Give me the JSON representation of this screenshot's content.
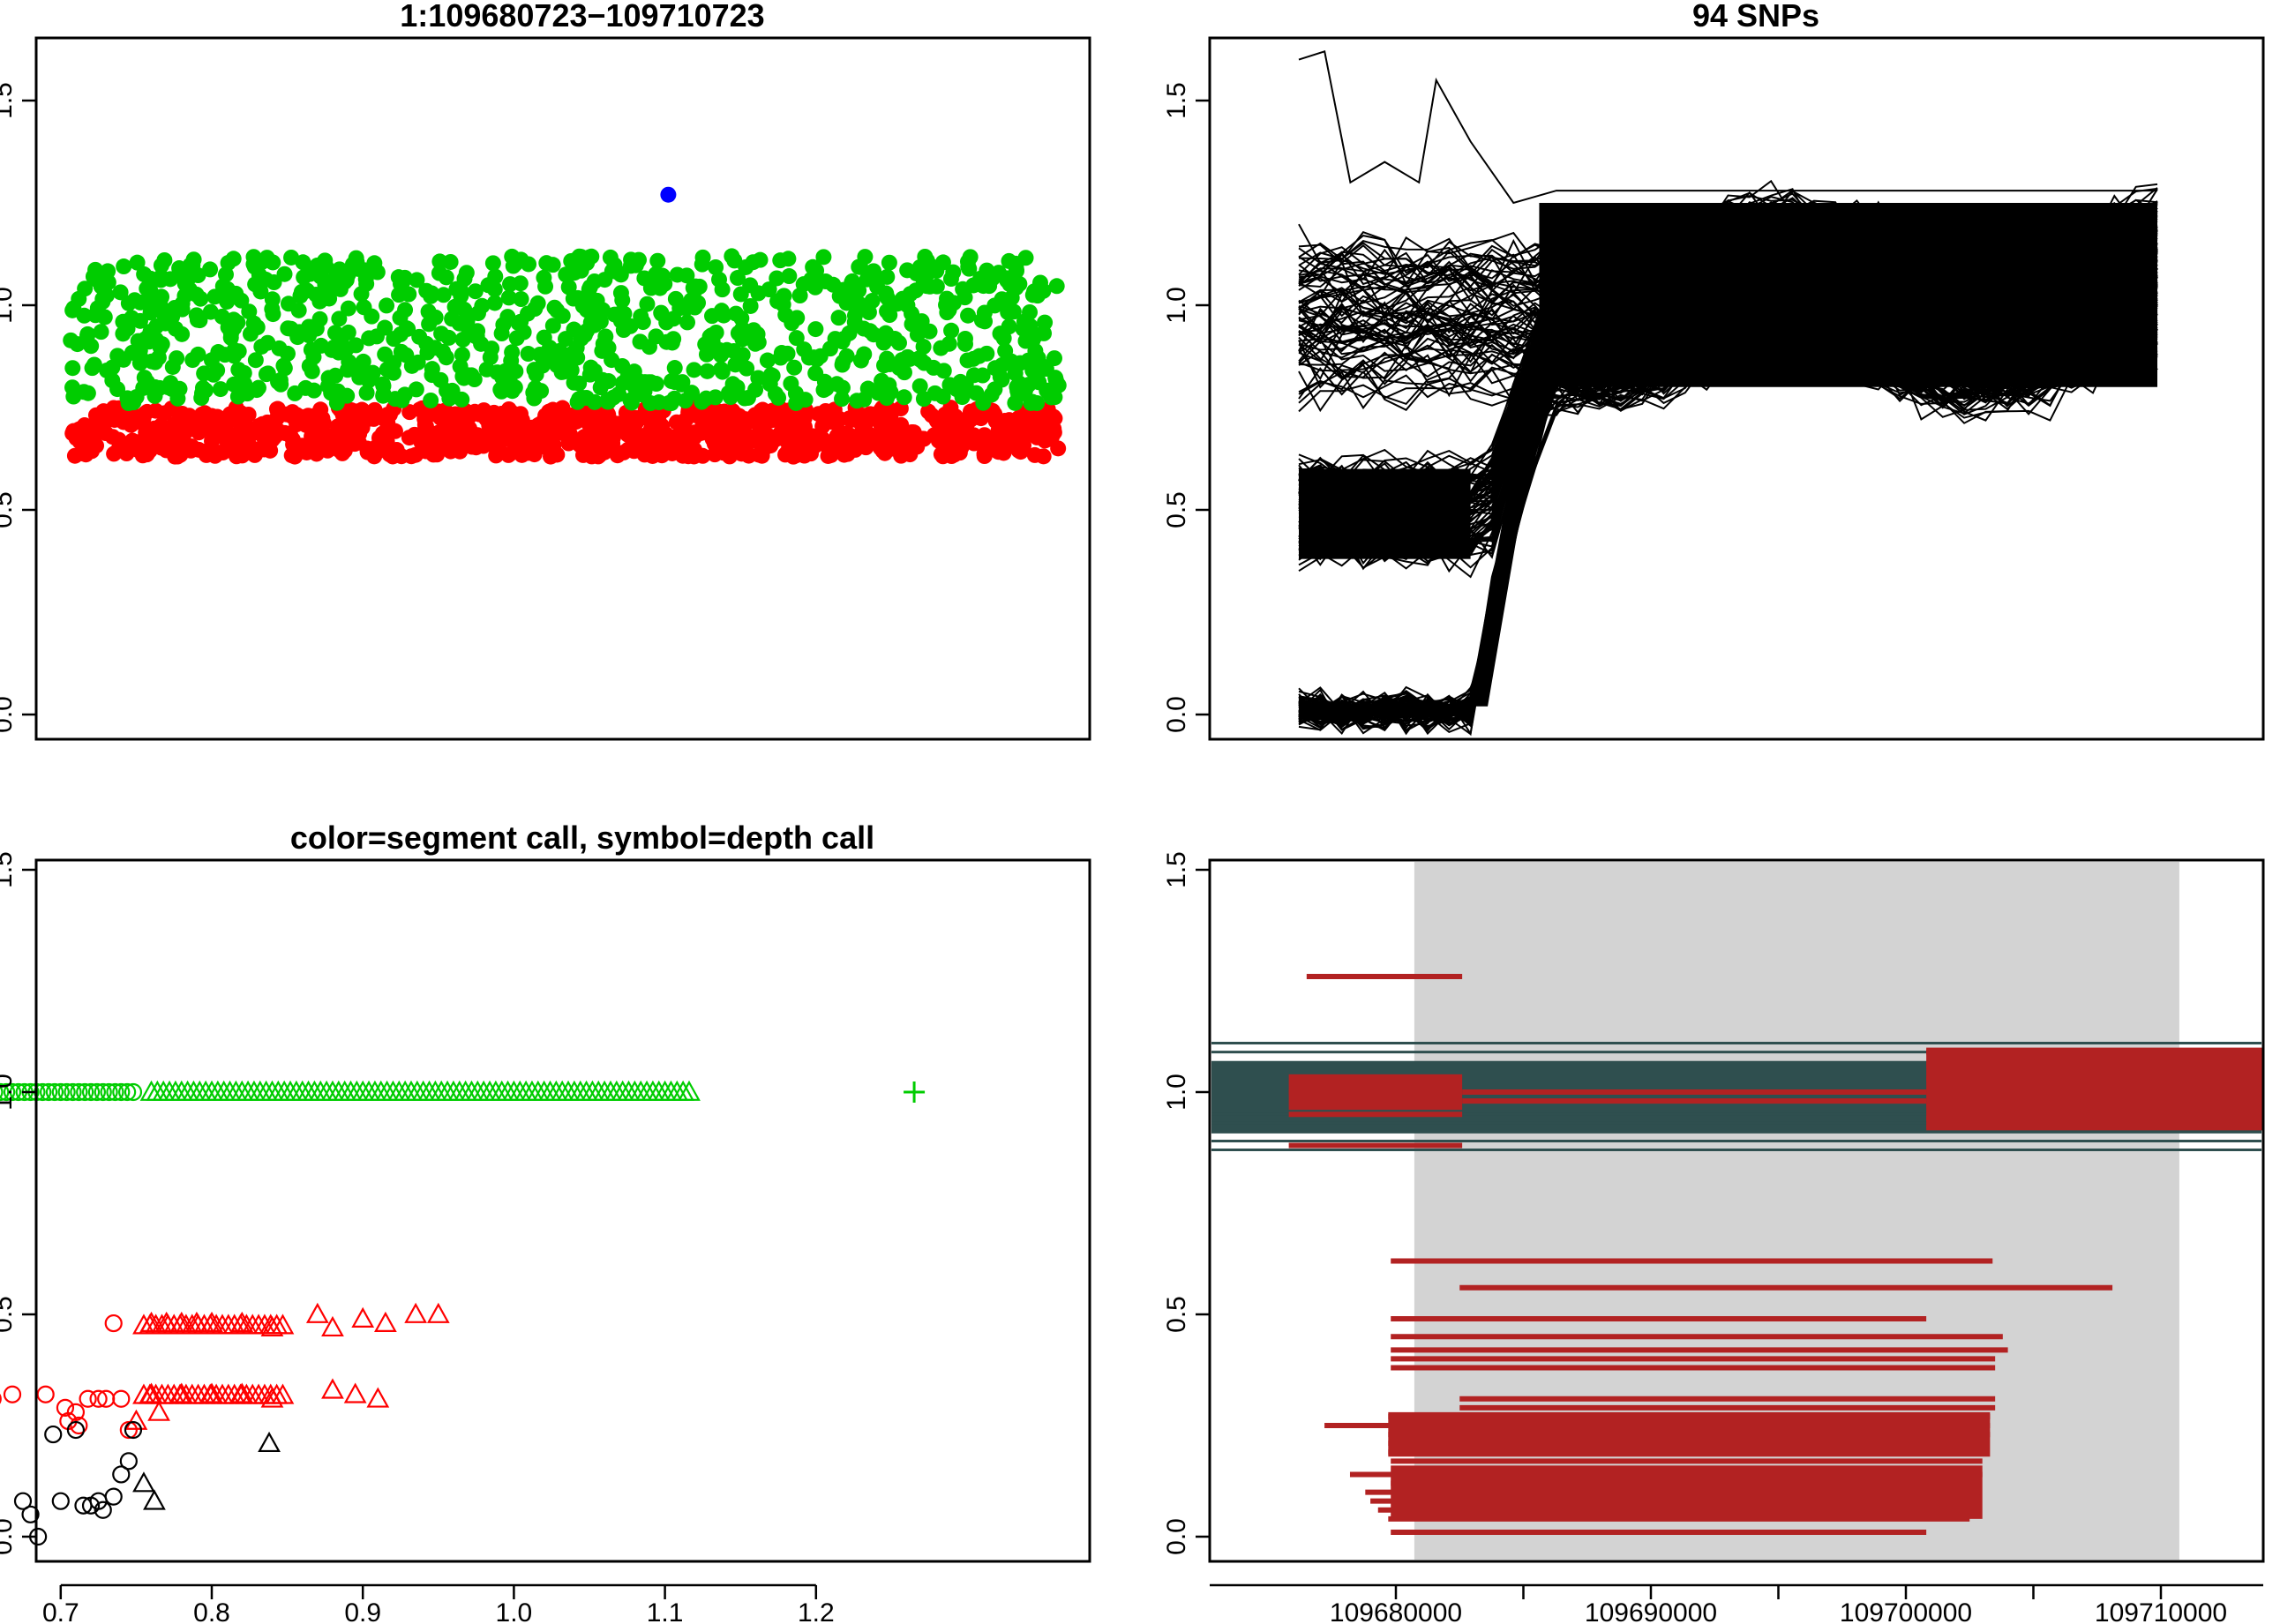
{
  "chart_data": [
    {
      "type": "scatter",
      "title": "1:109680723−109710723",
      "xlabel": "",
      "ylabel": "",
      "ylim": [
        0,
        1.65
      ],
      "ytick_labels": [
        "0.0",
        "0.5",
        "1.0",
        "1.5"
      ],
      "ytick_values": [
        0,
        0.5,
        1.0,
        1.5
      ],
      "x_axis_drawn": false,
      "colors": {
        "upper": "#00cc00",
        "lower": "#ff0000",
        "highlight": "#0000ff"
      },
      "point_count_estimate": 1800,
      "series": [
        {
          "color": "#00cc00",
          "y_range": [
            0.76,
            1.12
          ],
          "note_density": "dense band"
        },
        {
          "color": "#ff0000",
          "y_range": [
            0.63,
            0.75
          ],
          "note_density": "dense band"
        },
        {
          "color": "#0000ff",
          "points": [
            [
              0.6,
              1.27
            ]
          ]
        }
      ]
    },
    {
      "type": "line",
      "title": "94 SNPs",
      "xlabel": "",
      "ylabel": "",
      "ylim": [
        0,
        1.65
      ],
      "ytick_labels": [
        "0.0",
        "0.5",
        "1.0",
        "1.5"
      ],
      "ytick_values": [
        0,
        0.5,
        1.0,
        1.5
      ],
      "x_axis_drawn": false,
      "line_color": "#000000",
      "n_snps": 94,
      "profile_x": [
        0,
        0.08,
        0.16,
        0.25,
        0.3,
        0.42,
        0.55,
        0.7,
        0.85,
        1.0
      ],
      "profile_upper_mean": [
        1.0,
        0.9,
        0.95,
        1.05,
        1.0,
        1.05,
        1.0,
        1.05,
        1.0,
        1.0
      ],
      "profile_lower_mean": [
        0.52,
        0.48,
        0.52,
        0.55,
        0.95,
        1.05,
        1.0,
        1.05,
        1.0,
        1.0
      ],
      "profile_zero_mean": [
        0.01,
        0.01,
        0.01,
        0.01,
        1.0,
        1.05,
        1.0,
        1.05,
        1.0,
        1.0
      ]
    },
    {
      "type": "scatter",
      "title": "color=segment call, symbol=depth call",
      "xlabel": "",
      "ylabel": "",
      "xlim": [
        0.625,
        1.28
      ],
      "ylim": [
        0,
        1.5
      ],
      "xtick_labels": [
        "0.7",
        "0.8",
        "0.9",
        "1.0",
        "1.1",
        "1.2"
      ],
      "xtick_values": [
        0.7,
        0.8,
        0.9,
        1.0,
        1.1,
        1.2
      ],
      "ytick_labels": [
        "0.0",
        "0.5",
        "1.0",
        "1.5"
      ],
      "ytick_values": [
        0,
        0.5,
        1.0,
        1.5
      ],
      "series": [
        {
          "color": "#00cc00",
          "symbol": "circle",
          "points": [
            [
              0.64,
              1.0
            ],
            [
              0.65,
              1.0
            ],
            [
              0.66,
              1.0
            ],
            [
              0.67,
              1.0
            ],
            [
              0.68,
              1.0
            ],
            [
              0.69,
              1.0
            ],
            [
              0.7,
              1.0
            ],
            [
              0.71,
              1.0
            ],
            [
              0.72,
              1.0
            ],
            [
              0.73,
              1.0
            ],
            [
              0.74,
              1.0
            ],
            [
              0.75,
              1.0
            ]
          ]
        },
        {
          "color": "#00cc00",
          "symbol": "triangle",
          "points": [
            [
              0.76,
              1.0
            ],
            [
              0.8,
              1.0
            ],
            [
              0.85,
              1.0
            ],
            [
              0.9,
              1.0
            ],
            [
              0.95,
              1.0
            ],
            [
              1.0,
              1.0
            ],
            [
              1.05,
              1.0
            ],
            [
              1.08,
              1.0
            ],
            [
              1.1,
              1.0
            ],
            [
              1.12,
              1.0
            ]
          ]
        },
        {
          "color": "#00cc00",
          "symbol": "plus",
          "points": [
            [
              1.265,
              1.0
            ]
          ]
        },
        {
          "color": "#ff0000",
          "symbol": "circle",
          "points": [
            [
              0.655,
              0.31
            ],
            [
              0.668,
              0.32
            ],
            [
              0.69,
              0.32
            ],
            [
              0.703,
              0.29
            ],
            [
              0.705,
              0.26
            ],
            [
              0.71,
              0.28
            ],
            [
              0.712,
              0.25
            ],
            [
              0.718,
              0.31
            ],
            [
              0.725,
              0.31
            ],
            [
              0.73,
              0.31
            ],
            [
              0.735,
              0.48
            ],
            [
              0.74,
              0.31
            ],
            [
              0.745,
              0.24
            ]
          ]
        },
        {
          "color": "#ff0000",
          "symbol": "triangle",
          "points": [
            [
              0.75,
              0.26
            ],
            [
              0.76,
              0.48
            ],
            [
              0.77,
              0.48
            ],
            [
              0.78,
              0.48
            ],
            [
              0.79,
              0.48
            ],
            [
              0.8,
              0.48
            ],
            [
              0.82,
              0.48
            ],
            [
              0.84,
              0.47
            ],
            [
              0.87,
              0.5
            ],
            [
              0.88,
              0.47
            ],
            [
              0.9,
              0.49
            ],
            [
              0.915,
              0.48
            ],
            [
              0.935,
              0.5
            ],
            [
              0.95,
              0.5
            ],
            [
              0.76,
              0.32
            ],
            [
              0.78,
              0.32
            ],
            [
              0.8,
              0.32
            ],
            [
              0.82,
              0.32
            ],
            [
              0.84,
              0.31
            ],
            [
              0.88,
              0.33
            ],
            [
              0.895,
              0.32
            ],
            [
              0.91,
              0.31
            ],
            [
              0.765,
              0.28
            ]
          ]
        },
        {
          "color": "#000000",
          "symbol": "circle",
          "points": [
            [
              0.675,
              0.08
            ],
            [
              0.68,
              0.05
            ],
            [
              0.685,
              0.0
            ],
            [
              0.695,
              0.23
            ],
            [
              0.7,
              0.08
            ],
            [
              0.71,
              0.24
            ],
            [
              0.715,
              0.07
            ],
            [
              0.72,
              0.07
            ],
            [
              0.725,
              0.08
            ],
            [
              0.728,
              0.06
            ],
            [
              0.735,
              0.09
            ],
            [
              0.74,
              0.14
            ],
            [
              0.745,
              0.17
            ],
            [
              0.748,
              0.24
            ]
          ]
        },
        {
          "color": "#000000",
          "symbol": "triangle",
          "points": [
            [
              0.755,
              0.12
            ],
            [
              0.762,
              0.08
            ],
            [
              0.838,
              0.21
            ]
          ]
        }
      ]
    },
    {
      "type": "segments",
      "title": "",
      "xlabel": "",
      "ylabel": "",
      "xlim": [
        109676000,
        109715000
      ],
      "ylim": [
        0,
        1.5
      ],
      "xtick_labels": [
        "109680000",
        "109690000",
        "109700000",
        "109710000"
      ],
      "xtick_values": [
        109680000,
        109690000,
        109700000,
        109710000
      ],
      "minor_xtick_values": [
        109685000,
        109695000,
        109705000
      ],
      "ytick_labels": [
        "0.0",
        "0.5",
        "1.0",
        "1.5"
      ],
      "ytick_values": [
        0,
        0.5,
        1.0,
        1.5
      ],
      "shaded_region": [
        109680723,
        109710723
      ],
      "colors": {
        "segment": "#b22222",
        "dark": "#2f4f4f",
        "shade": "#d3d3d3"
      },
      "dark_band": [
        0.91,
        1.07
      ],
      "dark_lines_y": [
        1.11,
        1.09,
        0.95,
        0.93,
        0.91,
        0.89,
        0.87
      ],
      "red_segments": [
        [
          109676500,
          109682600,
          1.26
        ],
        [
          109675800,
          109682600,
          1.0
        ],
        [
          109675800,
          109682600,
          0.95
        ],
        [
          109675800,
          109682600,
          0.88
        ],
        [
          109682600,
          109700800,
          1.0
        ],
        [
          109682600,
          109700800,
          0.98
        ],
        [
          109700800,
          109715000,
          1.09
        ],
        [
          109700800,
          109715000,
          1.06
        ],
        [
          109700800,
          109715000,
          1.03
        ],
        [
          109700800,
          109715000,
          1.0
        ],
        [
          109700800,
          109715000,
          0.97
        ],
        [
          109700800,
          109715000,
          0.94
        ],
        [
          109700800,
          109714000,
          0.92
        ],
        [
          109679800,
          109703400,
          0.62
        ],
        [
          109682500,
          109708100,
          0.56
        ],
        [
          109679800,
          109700800,
          0.49
        ],
        [
          109679800,
          109703800,
          0.45
        ],
        [
          109679800,
          109704000,
          0.42
        ],
        [
          109679800,
          109703500,
          0.4
        ],
        [
          109679800,
          109703500,
          0.38
        ],
        [
          109682500,
          109703500,
          0.31
        ],
        [
          109682500,
          109703500,
          0.29
        ],
        [
          109679700,
          109703300,
          0.27
        ],
        [
          109677200,
          109703300,
          0.25
        ],
        [
          109679700,
          109703300,
          0.23
        ],
        [
          109679700,
          109703200,
          0.21
        ],
        [
          109679700,
          109703100,
          0.19
        ],
        [
          109679800,
          109703000,
          0.17
        ],
        [
          109678200,
          109703000,
          0.14
        ],
        [
          109679800,
          109702900,
          0.12
        ],
        [
          109678800,
          109702900,
          0.1
        ],
        [
          109679000,
          109702700,
          0.08
        ],
        [
          109679300,
          109702600,
          0.06
        ],
        [
          109679700,
          109702500,
          0.04
        ],
        [
          109679800,
          109700800,
          0.01
        ]
      ],
      "red_fill_blocks": [
        [
          109675800,
          109682600,
          0.96,
          1.04
        ],
        [
          109700800,
          109715000,
          0.92,
          1.1
        ],
        [
          109679800,
          109703000,
          0.04,
          0.16
        ],
        [
          109679700,
          109703300,
          0.18,
          0.28
        ]
      ]
    }
  ]
}
